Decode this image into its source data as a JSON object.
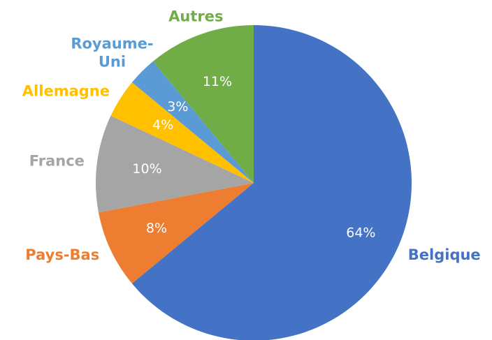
{
  "chart_data": {
    "type": "pie",
    "categories": [
      "Belgique",
      "Pays-Bas",
      "France",
      "Allemagne",
      "Royaume-Uni",
      "Autres"
    ],
    "values": [
      64,
      8,
      10,
      4,
      3,
      11
    ],
    "value_labels": [
      "64%",
      "8%",
      "10%",
      "4%",
      "3%",
      "11%"
    ],
    "colors": [
      "#4472c4",
      "#ed7d31",
      "#a5a5a5",
      "#ffc000",
      "#5b9bd5",
      "#70ad47"
    ]
  }
}
